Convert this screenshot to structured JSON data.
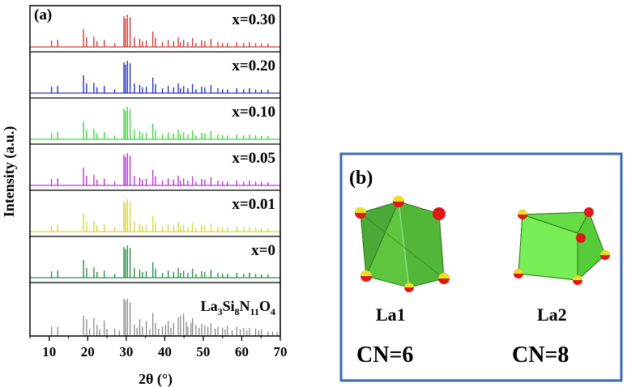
{
  "chart_data": [
    {
      "type": "line",
      "panel_label": "(a)",
      "xlabel": "2θ (°)",
      "ylabel": "Intensity (a.u.)",
      "xlim": [
        5,
        70
      ],
      "xticks": [
        10,
        20,
        30,
        40,
        50,
        60,
        70
      ],
      "grid": false,
      "peaks_2theta": [
        10.6,
        12.2,
        18.9,
        19.7,
        21.6,
        22.4,
        24.3,
        27.0,
        29.4,
        29.8,
        30.3,
        31.0,
        32.1,
        33.5,
        34.2,
        35.2,
        36.9,
        37.6,
        39.4,
        40.9,
        42.3,
        43.5,
        44.1,
        44.9,
        46.0,
        47.2,
        48.1,
        49.6,
        50.4,
        52.0,
        53.8,
        55.0,
        56.3,
        58.7,
        60.5,
        62.0,
        63.6,
        65.1,
        66.8
      ],
      "peak_heights": [
        0.2,
        0.22,
        0.55,
        0.3,
        0.32,
        0.18,
        0.22,
        0.12,
        0.95,
        0.88,
        1.0,
        0.92,
        0.3,
        0.25,
        0.18,
        0.2,
        0.48,
        0.28,
        0.15,
        0.22,
        0.18,
        0.3,
        0.15,
        0.22,
        0.15,
        0.28,
        0.12,
        0.2,
        0.18,
        0.25,
        0.15,
        0.12,
        0.12,
        0.15,
        0.12,
        0.15,
        0.12,
        0.1,
        0.1
      ],
      "series": [
        {
          "name": "x=0.30",
          "color": "#d43a3a"
        },
        {
          "name": "x=0.20",
          "color": "#2a35c4"
        },
        {
          "name": "x=0.10",
          "color": "#3fd63f"
        },
        {
          "name": "x=0.05",
          "color": "#b53ad6"
        },
        {
          "name": "x=0.01",
          "color": "#d6d63a"
        },
        {
          "name": "x=0",
          "color": "#2a8f4a"
        }
      ],
      "reference": {
        "formula_parts": [
          "La",
          "3",
          "Si",
          "8",
          "N",
          "11",
          "O",
          "4"
        ],
        "color": "#808080",
        "peaks_2theta": [
          10.6,
          12.2,
          18.9,
          19.7,
          20.5,
          21.6,
          22.4,
          23.1,
          24.3,
          25.0,
          27.0,
          28.2,
          29.4,
          29.8,
          30.3,
          31.0,
          32.1,
          32.8,
          33.5,
          34.2,
          35.2,
          36.1,
          36.9,
          37.6,
          38.4,
          39.4,
          40.2,
          40.9,
          41.6,
          42.3,
          43.5,
          44.1,
          44.9,
          45.6,
          46.0,
          46.8,
          47.2,
          48.1,
          48.9,
          49.6,
          50.4,
          51.2,
          52.0,
          53.1,
          53.8,
          55.0,
          55.7,
          56.3,
          57.5,
          58.7,
          59.6,
          60.5,
          61.3,
          62.0,
          63.6,
          64.4,
          65.1,
          66.8,
          68.0,
          69.2
        ],
        "peak_heights": [
          0.25,
          0.25,
          0.55,
          0.45,
          0.2,
          0.48,
          0.3,
          0.18,
          0.42,
          0.2,
          0.2,
          0.15,
          1.0,
          0.95,
          1.0,
          0.9,
          0.3,
          0.22,
          0.45,
          0.25,
          0.4,
          0.18,
          0.62,
          0.35,
          0.2,
          0.25,
          0.3,
          0.4,
          0.22,
          0.35,
          0.5,
          0.55,
          0.6,
          0.38,
          0.25,
          0.35,
          0.48,
          0.3,
          0.22,
          0.32,
          0.28,
          0.25,
          0.35,
          0.2,
          0.25,
          0.22,
          0.18,
          0.28,
          0.15,
          0.25,
          0.18,
          0.22,
          0.15,
          0.22,
          0.2,
          0.15,
          0.18,
          0.12,
          0.12,
          0.1
        ]
      }
    }
  ],
  "panel_b": {
    "label": "(b)",
    "structures": [
      {
        "site": "La1",
        "coordination": "CN=6"
      },
      {
        "site": "La2",
        "coordination": "CN=8"
      }
    ]
  },
  "colors": {
    "frame_blue": "#3a6ab8",
    "polyhedron_dark": "#3a9a2a",
    "polyhedron_light": "#66dd44",
    "atom_red": "#e01818",
    "atom_yellow": "#e8e020"
  }
}
